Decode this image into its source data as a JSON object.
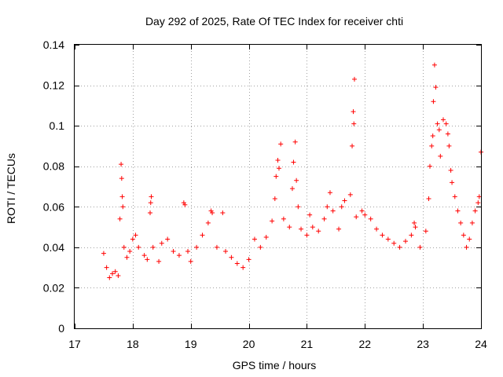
{
  "chart_data": {
    "type": "scatter",
    "title": "Day 292 of 2025, Rate Of TEC Index for receiver chti",
    "xlabel": "GPS time / hours",
    "ylabel": "ROTI / TECUs",
    "xlim": [
      17,
      24
    ],
    "ylim": [
      0,
      0.14
    ],
    "grid": true,
    "legend": "none",
    "marker": "+",
    "color": "#ff0000",
    "x_ticks": [
      "17",
      "18",
      "19",
      "20",
      "21",
      "22",
      "23",
      "24"
    ],
    "y_ticks": [
      "0",
      "0.02",
      "0.04",
      "0.06",
      "0.08",
      "0.1",
      "0.12",
      "0.14"
    ],
    "series": [
      {
        "name": "ROTI",
        "points": [
          [
            17.5,
            0.037
          ],
          [
            17.55,
            0.03
          ],
          [
            17.6,
            0.025
          ],
          [
            17.65,
            0.027
          ],
          [
            17.7,
            0.028
          ],
          [
            17.75,
            0.026
          ],
          [
            17.78,
            0.054
          ],
          [
            17.8,
            0.081
          ],
          [
            17.81,
            0.074
          ],
          [
            17.82,
            0.065
          ],
          [
            17.83,
            0.06
          ],
          [
            17.85,
            0.04
          ],
          [
            17.9,
            0.035
          ],
          [
            17.95,
            0.038
          ],
          [
            18.0,
            0.044
          ],
          [
            18.05,
            0.046
          ],
          [
            18.1,
            0.04
          ],
          [
            18.2,
            0.036
          ],
          [
            18.25,
            0.034
          ],
          [
            18.3,
            0.057
          ],
          [
            18.31,
            0.062
          ],
          [
            18.32,
            0.065
          ],
          [
            18.35,
            0.04
          ],
          [
            18.45,
            0.033
          ],
          [
            18.5,
            0.042
          ],
          [
            18.6,
            0.044
          ],
          [
            18.7,
            0.038
          ],
          [
            18.8,
            0.036
          ],
          [
            18.88,
            0.062
          ],
          [
            18.9,
            0.061
          ],
          [
            18.95,
            0.038
          ],
          [
            19.0,
            0.033
          ],
          [
            19.1,
            0.04
          ],
          [
            19.2,
            0.046
          ],
          [
            19.3,
            0.052
          ],
          [
            19.35,
            0.058
          ],
          [
            19.37,
            0.057
          ],
          [
            19.45,
            0.04
          ],
          [
            19.55,
            0.057
          ],
          [
            19.6,
            0.038
          ],
          [
            19.7,
            0.035
          ],
          [
            19.8,
            0.032
          ],
          [
            19.9,
            0.03
          ],
          [
            20.0,
            0.034
          ],
          [
            20.1,
            0.044
          ],
          [
            20.2,
            0.04
          ],
          [
            20.3,
            0.045
          ],
          [
            20.4,
            0.053
          ],
          [
            20.45,
            0.064
          ],
          [
            20.47,
            0.075
          ],
          [
            20.5,
            0.083
          ],
          [
            20.52,
            0.079
          ],
          [
            20.55,
            0.091
          ],
          [
            20.6,
            0.054
          ],
          [
            20.7,
            0.05
          ],
          [
            20.75,
            0.069
          ],
          [
            20.77,
            0.082
          ],
          [
            20.8,
            0.092
          ],
          [
            20.82,
            0.073
          ],
          [
            20.85,
            0.06
          ],
          [
            20.9,
            0.049
          ],
          [
            21.0,
            0.046
          ],
          [
            21.05,
            0.056
          ],
          [
            21.1,
            0.05
          ],
          [
            21.2,
            0.048
          ],
          [
            21.3,
            0.054
          ],
          [
            21.35,
            0.06
          ],
          [
            21.4,
            0.067
          ],
          [
            21.45,
            0.058
          ],
          [
            21.55,
            0.049
          ],
          [
            21.6,
            0.06
          ],
          [
            21.65,
            0.063
          ],
          [
            21.75,
            0.066
          ],
          [
            21.78,
            0.09
          ],
          [
            21.8,
            0.107
          ],
          [
            21.81,
            0.101
          ],
          [
            21.82,
            0.123
          ],
          [
            21.85,
            0.055
          ],
          [
            21.95,
            0.058
          ],
          [
            22.0,
            0.056
          ],
          [
            22.1,
            0.054
          ],
          [
            22.2,
            0.049
          ],
          [
            22.3,
            0.046
          ],
          [
            22.4,
            0.044
          ],
          [
            22.5,
            0.042
          ],
          [
            22.6,
            0.04
          ],
          [
            22.7,
            0.043
          ],
          [
            22.8,
            0.046
          ],
          [
            22.85,
            0.052
          ],
          [
            22.87,
            0.05
          ],
          [
            22.95,
            0.04
          ],
          [
            23.05,
            0.048
          ],
          [
            23.1,
            0.064
          ],
          [
            23.12,
            0.08
          ],
          [
            23.15,
            0.09
          ],
          [
            23.17,
            0.095
          ],
          [
            23.18,
            0.112
          ],
          [
            23.2,
            0.13
          ],
          [
            23.22,
            0.119
          ],
          [
            23.25,
            0.101
          ],
          [
            23.28,
            0.098
          ],
          [
            23.3,
            0.085
          ],
          [
            23.35,
            0.103
          ],
          [
            23.4,
            0.101
          ],
          [
            23.43,
            0.096
          ],
          [
            23.45,
            0.09
          ],
          [
            23.48,
            0.078
          ],
          [
            23.5,
            0.072
          ],
          [
            23.55,
            0.065
          ],
          [
            23.6,
            0.058
          ],
          [
            23.65,
            0.052
          ],
          [
            23.7,
            0.046
          ],
          [
            23.75,
            0.04
          ],
          [
            23.8,
            0.044
          ],
          [
            23.85,
            0.052
          ],
          [
            23.9,
            0.058
          ],
          [
            23.95,
            0.062
          ],
          [
            23.97,
            0.065
          ],
          [
            24.0,
            0.087
          ]
        ]
      }
    ]
  }
}
